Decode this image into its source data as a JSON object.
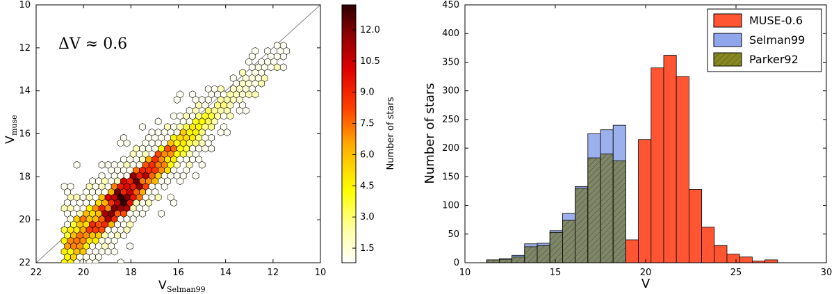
{
  "figure": {
    "left_panel": {
      "type": "hexbin",
      "annotation": "ΔV ≈ 0.6",
      "xlabel_main": "V",
      "xlabel_sub": "Selman99",
      "ylabel_main": "V",
      "ylabel_sub": "muse",
      "x_ticks": [
        "22",
        "20",
        "18",
        "16",
        "14",
        "12",
        "10"
      ],
      "y_ticks": [
        "10",
        "12",
        "14",
        "16",
        "18",
        "20",
        "22"
      ],
      "colorbar_label": "Number of stars",
      "colorbar_ticks": [
        "1.5",
        "3.0",
        "4.5",
        "6.0",
        "7.5",
        "9.0",
        "10.5",
        "12.0"
      ],
      "colorbar_range": [
        0.8,
        13.2
      ],
      "colormap": [
        "#ffffff",
        "#ffff99",
        "#ffff00",
        "#ffb000",
        "#ff4000",
        "#e00000",
        "#900000",
        "#2a0000"
      ],
      "diagonal_line_color": "#808080",
      "points_sample": [
        {
          "x": 20.3,
          "y": 20.5,
          "count": 1
        },
        {
          "x": 19.6,
          "y": 20.4,
          "count": 3
        },
        {
          "x": 19.3,
          "y": 19.9,
          "count": 7
        },
        {
          "x": 19.0,
          "y": 19.6,
          "count": 9
        },
        {
          "x": 18.7,
          "y": 19.3,
          "count": 11
        },
        {
          "x": 18.4,
          "y": 19.0,
          "count": 9
        },
        {
          "x": 18.0,
          "y": 18.5,
          "count": 10
        },
        {
          "x": 17.7,
          "y": 18.1,
          "count": 13
        },
        {
          "x": 17.4,
          "y": 17.8,
          "count": 11
        },
        {
          "x": 17.0,
          "y": 17.3,
          "count": 10
        },
        {
          "x": 16.7,
          "y": 17.0,
          "count": 8
        },
        {
          "x": 16.4,
          "y": 16.6,
          "count": 6
        },
        {
          "x": 16.0,
          "y": 16.2,
          "count": 5
        },
        {
          "x": 15.7,
          "y": 15.9,
          "count": 4
        },
        {
          "x": 15.3,
          "y": 15.6,
          "count": 5
        },
        {
          "x": 15.0,
          "y": 15.2,
          "count": 3
        },
        {
          "x": 14.6,
          "y": 14.8,
          "count": 3
        },
        {
          "x": 14.2,
          "y": 14.5,
          "count": 2
        },
        {
          "x": 13.8,
          "y": 14.0,
          "count": 3
        },
        {
          "x": 13.4,
          "y": 13.7,
          "count": 2
        },
        {
          "x": 13.0,
          "y": 13.3,
          "count": 1
        },
        {
          "x": 12.6,
          "y": 12.9,
          "count": 1
        },
        {
          "x": 12.0,
          "y": 12.4,
          "count": 1
        },
        {
          "x": 11.5,
          "y": 12.0,
          "count": 1
        }
      ]
    },
    "right_panel": {
      "type": "histogram",
      "xlabel": "V",
      "ylabel": "Number of stars",
      "x_ticks": [
        "10",
        "15",
        "20",
        "25",
        "30"
      ],
      "y_ticks": [
        "0",
        "50",
        "100",
        "150",
        "200",
        "250",
        "300",
        "350",
        "400",
        "450"
      ],
      "xlim": [
        10,
        30
      ],
      "ylim": [
        0,
        450
      ],
      "bin_edges": [
        11.2,
        11.9,
        12.6,
        13.3,
        14.0,
        14.7,
        15.4,
        16.1,
        16.8,
        17.5,
        18.2,
        18.9,
        19.6,
        20.3,
        21.0,
        21.7,
        22.4,
        23.1,
        23.8,
        24.5,
        25.2,
        25.9,
        26.6,
        27.3
      ],
      "legend": [
        "MUSE-0.6",
        "Selman99",
        "Parker92"
      ],
      "legend_colors": [
        "#ff5533",
        "#8fa6ec",
        "#888822"
      ]
    }
  },
  "chart_data": [
    {
      "type": "scatter",
      "subtype": "hexbin",
      "xlabel": "V_Selman99",
      "ylabel": "V_muse",
      "xlim": [
        22,
        10
      ],
      "ylim": [
        22,
        10
      ],
      "annotation": "ΔV ≈ 0.6",
      "colorbar_label": "Number of stars",
      "colorbar_ticks": [
        1.5,
        3.0,
        4.5,
        6.0,
        7.5,
        9.0,
        10.5,
        12.0
      ]
    },
    {
      "type": "bar",
      "subtype": "histogram",
      "xlabel": "V",
      "ylabel": "Number of stars",
      "xlim": [
        10,
        30
      ],
      "ylim": [
        0,
        450
      ],
      "bin_centers": [
        11.55,
        12.25,
        12.95,
        13.65,
        14.35,
        15.05,
        15.75,
        16.45,
        17.15,
        17.85,
        18.55,
        19.25,
        19.95,
        20.65,
        21.35,
        22.05,
        22.75,
        23.45,
        24.15,
        24.85,
        25.55,
        26.25,
        26.95
      ],
      "series": [
        {
          "name": "MUSE-0.6",
          "values": [
            0,
            0,
            0,
            0,
            0,
            0,
            0,
            0,
            0,
            0,
            0,
            40,
            215,
            340,
            362,
            325,
            128,
            62,
            30,
            15,
            10,
            3,
            5
          ]
        },
        {
          "name": "Selman99",
          "values": [
            5,
            7,
            13,
            33,
            34,
            56,
            86,
            133,
            225,
            232,
            240,
            0,
            0,
            0,
            0,
            0,
            0,
            0,
            0,
            0,
            0,
            0,
            0
          ]
        },
        {
          "name": "Parker92",
          "values": [
            5,
            6,
            10,
            28,
            30,
            53,
            74,
            130,
            183,
            190,
            178,
            0,
            0,
            0,
            0,
            0,
            0,
            0,
            0,
            0,
            0,
            0,
            0
          ]
        }
      ]
    }
  ]
}
